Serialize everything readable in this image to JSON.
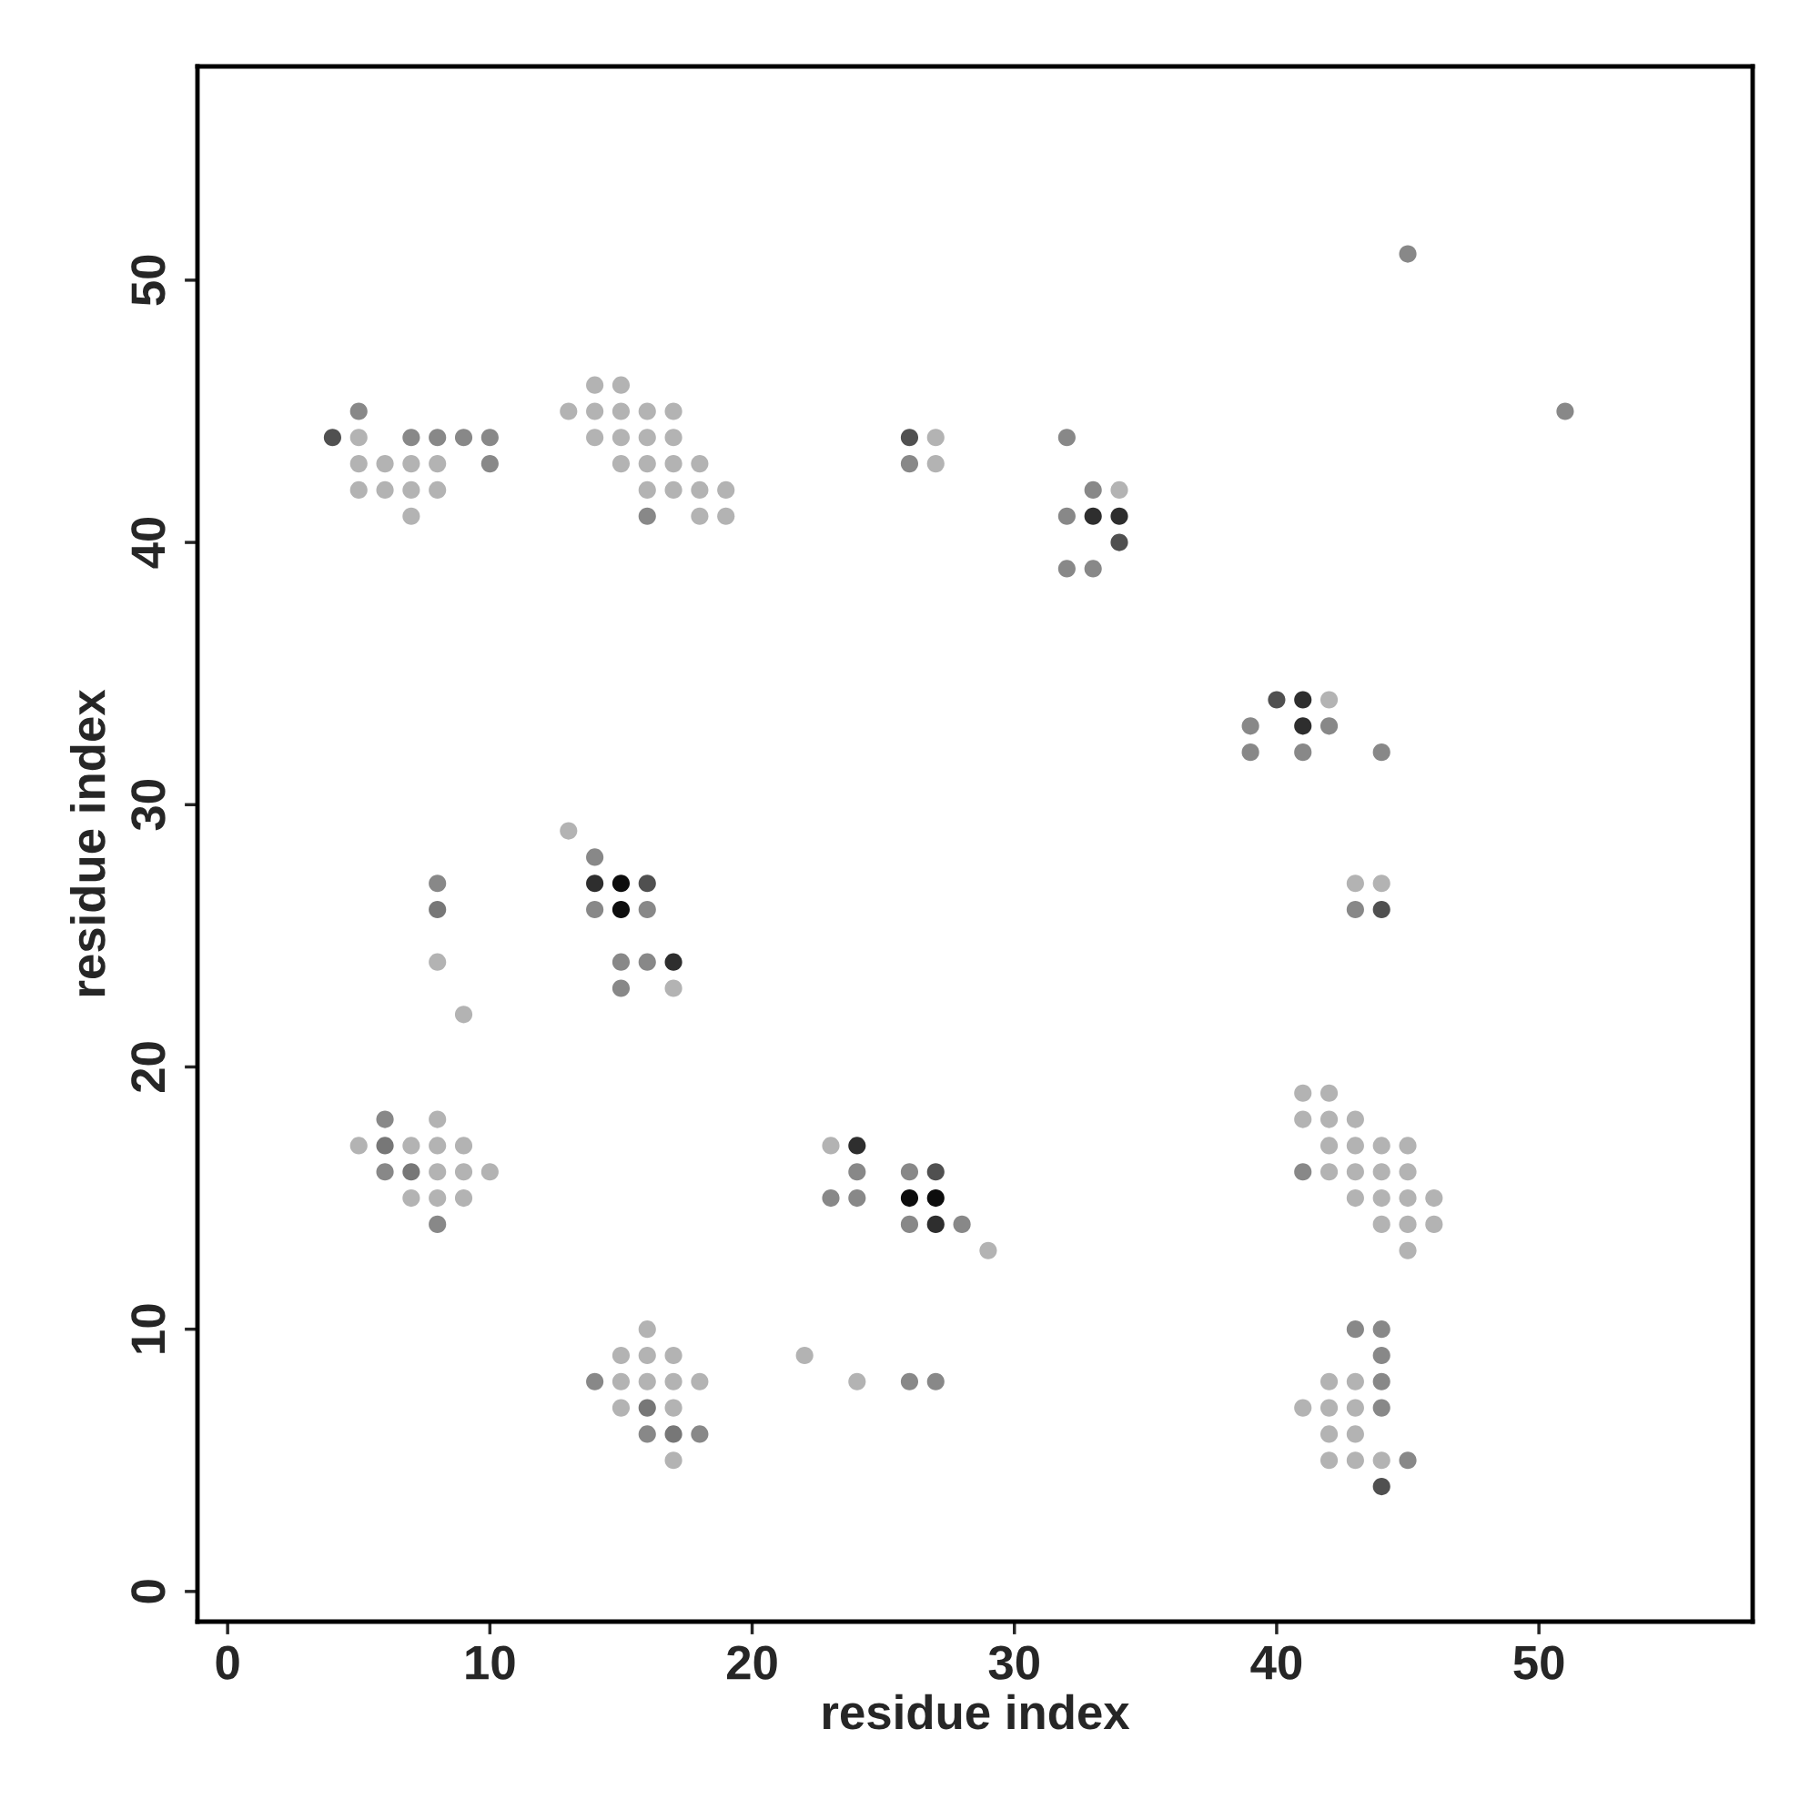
{
  "chart_data": {
    "type": "scatter",
    "xlabel": "residue index",
    "ylabel": "residue index",
    "xlim": [
      -1.15,
      58.15
    ],
    "ylim": [
      -1.15,
      58.15
    ],
    "xticks": [
      0,
      10,
      20,
      30,
      40,
      50
    ],
    "yticks": [
      0,
      10,
      20,
      30,
      40,
      50
    ],
    "grid": false,
    "legend": false,
    "marker": "circle",
    "series": [
      {
        "color": "#b3b3b3",
        "x": [
          5,
          5,
          5,
          6,
          6,
          7,
          7,
          7,
          8,
          8,
          14,
          15,
          13,
          14,
          15,
          16,
          17,
          14,
          15,
          16,
          17,
          15,
          16,
          17,
          18,
          16,
          17,
          18,
          19,
          18,
          19,
          27,
          27,
          34,
          42,
          43,
          44,
          13,
          17,
          8,
          9,
          8,
          5,
          7,
          8,
          9,
          8,
          9,
          10,
          7,
          8,
          9,
          23,
          29,
          41,
          42,
          41,
          42,
          43,
          42,
          43,
          44,
          45,
          42,
          43,
          44,
          45,
          43,
          44,
          45,
          46,
          44,
          45,
          46,
          45,
          16,
          15,
          16,
          17,
          15,
          16,
          17,
          18,
          15,
          17,
          17,
          22,
          24,
          42,
          43,
          41,
          42,
          43,
          42,
          43,
          42,
          43,
          44
        ],
        "values": [
          44,
          43,
          42,
          43,
          42,
          43,
          42,
          41,
          43,
          42,
          46,
          46,
          45,
          45,
          45,
          45,
          45,
          44,
          44,
          44,
          44,
          43,
          43,
          43,
          43,
          42,
          42,
          42,
          42,
          41,
          41,
          44,
          43,
          42,
          34,
          27,
          27,
          29,
          23,
          24,
          22,
          18,
          17,
          17,
          17,
          17,
          16,
          16,
          16,
          15,
          15,
          15,
          17,
          13,
          19,
          19,
          18,
          18,
          18,
          17,
          17,
          17,
          17,
          16,
          16,
          16,
          16,
          15,
          15,
          15,
          15,
          14,
          14,
          14,
          13,
          10,
          9,
          9,
          9,
          8,
          8,
          8,
          8,
          7,
          7,
          5,
          9,
          8,
          8,
          8,
          7,
          7,
          7,
          6,
          6,
          5,
          5,
          5
        ]
      },
      {
        "color": "#888888",
        "x": [
          5,
          7,
          8,
          9,
          10,
          10,
          16,
          26,
          32,
          33,
          32,
          32,
          33,
          45,
          51,
          39,
          42,
          39,
          41,
          44,
          43,
          14,
          14,
          16,
          15,
          16,
          15,
          8,
          6,
          6,
          8,
          24,
          26,
          23,
          24,
          26,
          28,
          41,
          14,
          16,
          18,
          26,
          27,
          43,
          44,
          44,
          44,
          44,
          45
        ],
        "values": [
          45,
          44,
          44,
          44,
          44,
          43,
          41,
          43,
          44,
          42,
          41,
          39,
          39,
          51,
          45,
          33,
          33,
          32,
          32,
          32,
          26,
          28,
          26,
          26,
          24,
          24,
          23,
          27,
          18,
          16,
          14,
          16,
          16,
          15,
          15,
          14,
          14,
          16,
          8,
          6,
          6,
          8,
          8,
          10,
          10,
          9,
          8,
          7,
          5
        ]
      },
      {
        "color": "#777777",
        "x": [
          8,
          6,
          7,
          16,
          17
        ],
        "values": [
          26,
          17,
          16,
          7,
          6
        ]
      },
      {
        "color": "#505050",
        "x": [
          4,
          26,
          34,
          40,
          44,
          16,
          27,
          44
        ],
        "values": [
          44,
          44,
          40,
          34,
          26,
          27,
          16,
          4
        ]
      },
      {
        "color": "#2e2e2e",
        "x": [
          33,
          34,
          41,
          41,
          14,
          17,
          24,
          27
        ],
        "values": [
          41,
          41,
          34,
          33,
          27,
          24,
          17,
          14
        ]
      },
      {
        "color": "#0d0d0d",
        "x": [
          15,
          15,
          26,
          27
        ],
        "values": [
          27,
          26,
          15,
          15
        ]
      }
    ]
  }
}
